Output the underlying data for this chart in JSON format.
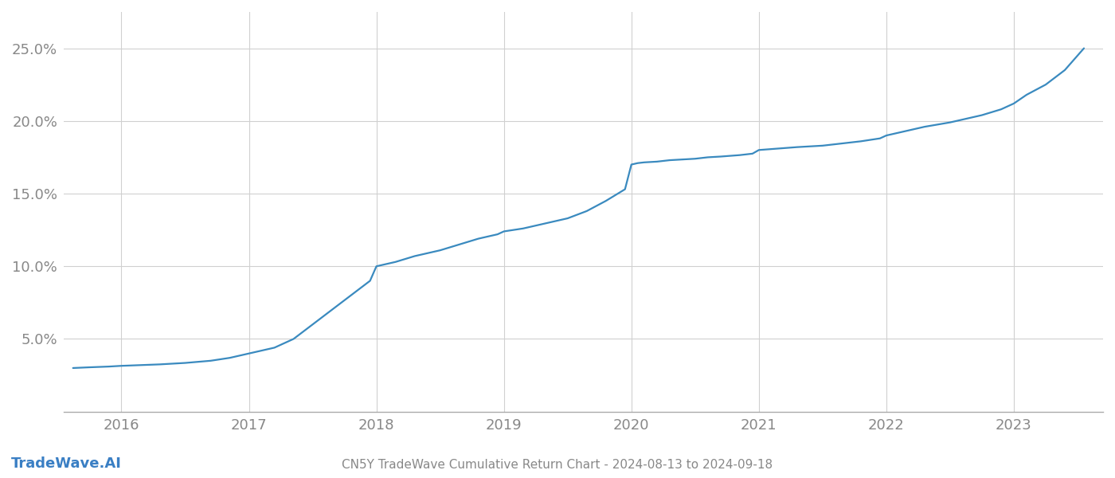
{
  "title": "CN5Y TradeWave Cumulative Return Chart - 2024-08-13 to 2024-09-18",
  "watermark": "TradeWave.AI",
  "line_color": "#3a8abf",
  "background_color": "#ffffff",
  "grid_color": "#d0d0d0",
  "x_values": [
    2015.62,
    2015.75,
    2015.9,
    2016.0,
    2016.15,
    2016.3,
    2016.5,
    2016.7,
    2016.85,
    2017.0,
    2017.05,
    2017.1,
    2017.2,
    2017.35,
    2017.5,
    2017.65,
    2017.8,
    2017.95,
    2018.0,
    2018.05,
    2018.15,
    2018.3,
    2018.5,
    2018.65,
    2018.8,
    2018.95,
    2019.0,
    2019.15,
    2019.3,
    2019.5,
    2019.65,
    2019.8,
    2019.95,
    2020.0,
    2020.05,
    2020.1,
    2020.2,
    2020.3,
    2020.4,
    2020.5,
    2020.6,
    2020.7,
    2020.85,
    2020.95,
    2021.0,
    2021.15,
    2021.3,
    2021.5,
    2021.65,
    2021.8,
    2021.95,
    2022.0,
    2022.15,
    2022.3,
    2022.5,
    2022.55,
    2022.6,
    2022.75,
    2022.9,
    2023.0,
    2023.1,
    2023.25,
    2023.4,
    2023.55
  ],
  "y_values": [
    3.0,
    3.05,
    3.1,
    3.15,
    3.2,
    3.25,
    3.35,
    3.5,
    3.7,
    4.0,
    4.1,
    4.2,
    4.4,
    5.0,
    6.0,
    7.0,
    8.0,
    9.0,
    10.0,
    10.1,
    10.3,
    10.7,
    11.1,
    11.5,
    11.9,
    12.2,
    12.4,
    12.6,
    12.9,
    13.3,
    13.8,
    14.5,
    15.3,
    17.0,
    17.1,
    17.15,
    17.2,
    17.3,
    17.35,
    17.4,
    17.5,
    17.55,
    17.65,
    17.75,
    18.0,
    18.1,
    18.2,
    18.3,
    18.45,
    18.6,
    18.8,
    19.0,
    19.3,
    19.6,
    19.9,
    20.0,
    20.1,
    20.4,
    20.8,
    21.2,
    21.8,
    22.5,
    23.5,
    25.0
  ],
  "xlim": [
    2015.55,
    2023.7
  ],
  "ylim": [
    0.0,
    27.5
  ],
  "yticks": [
    5.0,
    10.0,
    15.0,
    20.0,
    25.0
  ],
  "ytick_labels": [
    "5.0%",
    "10.0%",
    "15.0%",
    "20.0%",
    "25.0%"
  ],
  "xtick_labels": [
    "2016",
    "2017",
    "2018",
    "2019",
    "2020",
    "2021",
    "2022",
    "2023"
  ],
  "xtick_positions": [
    2016,
    2017,
    2018,
    2019,
    2020,
    2021,
    2022,
    2023
  ],
  "line_width": 1.6,
  "title_fontsize": 11,
  "tick_fontsize": 13,
  "watermark_fontsize": 13,
  "tick_color": "#888888",
  "watermark_color": "#3a7fc4",
  "axis_color": "#aaaaaa"
}
